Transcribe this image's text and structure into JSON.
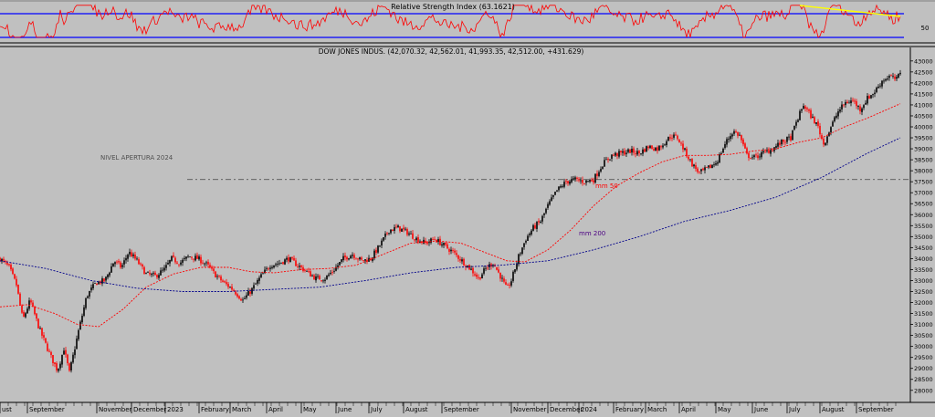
{
  "rsi_panel": {
    "title": "Relative Strength Index (63.1621)",
    "axis_label": "50"
  },
  "main_panel": {
    "title": "DOW JONES INDUS. (42,070.32, 42,562.01, 41,993.35, 42,512.00, +431.629)",
    "annotations": [
      {
        "text": "NIVEL APERTURA 2024"
      },
      {
        "text": "mm 50"
      },
      {
        "text": "mm 200"
      }
    ]
  },
  "colors": {
    "background": "#c0c0c0",
    "candle_up": "#000000",
    "candle_down": "#ff0000",
    "ma50": "#ff0000",
    "ma200": "#00008b",
    "rsi_line": "#ff0000",
    "rsi_level": "#0000ff",
    "trendline": "#ffff00",
    "reference_line": "#404040",
    "mm200_label": "#4b0082"
  },
  "chart_data": {
    "type": "candlestick",
    "title": "DOW JONES INDUS. (42,070.32, 42,562.01, 41,993.35, 42,512.00, +431.629)",
    "ylim": [
      27700,
      43200
    ],
    "y_axis_side": "right",
    "y_ticks": [
      28000,
      28500,
      29000,
      29500,
      30000,
      30500,
      31000,
      31500,
      32000,
      32500,
      33000,
      33500,
      34000,
      34500,
      35000,
      35500,
      36000,
      36500,
      37000,
      37500,
      38000,
      38500,
      39000,
      39500,
      40000,
      40500,
      41000,
      41500,
      42000,
      42500,
      43000
    ],
    "x_tick_labels": [
      "ust",
      "September",
      "November",
      "December",
      "2023",
      "February",
      "March",
      "April",
      "May",
      "June",
      "July",
      "August",
      "September",
      "November",
      "December",
      "2024",
      "February",
      "March",
      "April",
      "May",
      "June",
      "July",
      "August",
      "September"
    ],
    "grid": false,
    "price_path": [
      {
        "t": 0,
        "v": 34000
      },
      {
        "t": 10,
        "v": 33600
      },
      {
        "t": 18,
        "v": 32800
      },
      {
        "t": 25,
        "v": 31200
      },
      {
        "t": 33,
        "v": 32100
      },
      {
        "t": 43,
        "v": 30800
      },
      {
        "t": 55,
        "v": 29600
      },
      {
        "t": 63,
        "v": 28900
      },
      {
        "t": 70,
        "v": 29900
      },
      {
        "t": 76,
        "v": 28800
      },
      {
        "t": 86,
        "v": 30700
      },
      {
        "t": 95,
        "v": 32300
      },
      {
        "t": 105,
        "v": 32900
      },
      {
        "t": 115,
        "v": 33000
      },
      {
        "t": 125,
        "v": 33900
      },
      {
        "t": 133,
        "v": 33600
      },
      {
        "t": 141,
        "v": 34300
      },
      {
        "t": 150,
        "v": 33900
      },
      {
        "t": 160,
        "v": 33300
      },
      {
        "t": 170,
        "v": 33200
      },
      {
        "t": 180,
        "v": 33500
      },
      {
        "t": 188,
        "v": 34000
      },
      {
        "t": 197,
        "v": 33800
      },
      {
        "t": 207,
        "v": 34100
      },
      {
        "t": 217,
        "v": 34000
      },
      {
        "t": 227,
        "v": 33700
      },
      {
        "t": 235,
        "v": 33300
      },
      {
        "t": 245,
        "v": 32900
      },
      {
        "t": 255,
        "v": 32600
      },
      {
        "t": 266,
        "v": 32100
      },
      {
        "t": 276,
        "v": 32600
      },
      {
        "t": 286,
        "v": 33200
      },
      {
        "t": 296,
        "v": 33700
      },
      {
        "t": 306,
        "v": 33800
      },
      {
        "t": 316,
        "v": 34000
      },
      {
        "t": 326,
        "v": 33700
      },
      {
        "t": 336,
        "v": 33400
      },
      {
        "t": 346,
        "v": 33100
      },
      {
        "t": 356,
        "v": 33100
      },
      {
        "t": 366,
        "v": 33500
      },
      {
        "t": 376,
        "v": 34000
      },
      {
        "t": 386,
        "v": 34200
      },
      {
        "t": 396,
        "v": 33900
      },
      {
        "t": 406,
        "v": 34000
      },
      {
        "t": 416,
        "v": 34600
      },
      {
        "t": 426,
        "v": 35300
      },
      {
        "t": 436,
        "v": 35400
      },
      {
        "t": 446,
        "v": 35200
      },
      {
        "t": 456,
        "v": 34900
      },
      {
        "t": 466,
        "v": 34700
      },
      {
        "t": 476,
        "v": 34900
      },
      {
        "t": 486,
        "v": 34600
      },
      {
        "t": 496,
        "v": 34300
      },
      {
        "t": 506,
        "v": 33900
      },
      {
        "t": 516,
        "v": 33500
      },
      {
        "t": 524,
        "v": 33100
      },
      {
        "t": 533,
        "v": 33600
      },
      {
        "t": 540,
        "v": 33800
      },
      {
        "t": 548,
        "v": 33200
      },
      {
        "t": 555,
        "v": 32600
      },
      {
        "t": 560,
        "v": 33000
      },
      {
        "t": 568,
        "v": 34100
      },
      {
        "t": 576,
        "v": 34900
      },
      {
        "t": 584,
        "v": 35400
      },
      {
        "t": 592,
        "v": 35700
      },
      {
        "t": 600,
        "v": 36400
      },
      {
        "t": 610,
        "v": 37100
      },
      {
        "t": 620,
        "v": 37500
      },
      {
        "t": 630,
        "v": 37600
      },
      {
        "t": 640,
        "v": 37500
      },
      {
        "t": 650,
        "v": 37600
      },
      {
        "t": 660,
        "v": 38300
      },
      {
        "t": 670,
        "v": 38700
      },
      {
        "t": 680,
        "v": 38800
      },
      {
        "t": 690,
        "v": 38900
      },
      {
        "t": 700,
        "v": 38800
      },
      {
        "t": 710,
        "v": 39100
      },
      {
        "t": 720,
        "v": 39000
      },
      {
        "t": 728,
        "v": 39300
      },
      {
        "t": 735,
        "v": 39600
      },
      {
        "t": 742,
        "v": 39500
      },
      {
        "t": 750,
        "v": 38900
      },
      {
        "t": 758,
        "v": 38300
      },
      {
        "t": 766,
        "v": 37900
      },
      {
        "t": 775,
        "v": 38100
      },
      {
        "t": 785,
        "v": 38400
      },
      {
        "t": 795,
        "v": 39300
      },
      {
        "t": 803,
        "v": 39800
      },
      {
        "t": 810,
        "v": 39600
      },
      {
        "t": 818,
        "v": 38700
      },
      {
        "t": 826,
        "v": 38600
      },
      {
        "t": 836,
        "v": 38800
      },
      {
        "t": 846,
        "v": 39000
      },
      {
        "t": 856,
        "v": 39300
      },
      {
        "t": 866,
        "v": 39500
      },
      {
        "t": 873,
        "v": 40300
      },
      {
        "t": 880,
        "v": 41000
      },
      {
        "t": 888,
        "v": 40500
      },
      {
        "t": 896,
        "v": 40000
      },
      {
        "t": 902,
        "v": 39200
      },
      {
        "t": 910,
        "v": 40000
      },
      {
        "t": 918,
        "v": 40700
      },
      {
        "t": 926,
        "v": 41100
      },
      {
        "t": 934,
        "v": 41200
      },
      {
        "t": 942,
        "v": 40800
      },
      {
        "t": 950,
        "v": 41300
      },
      {
        "t": 958,
        "v": 41600
      },
      {
        "t": 966,
        "v": 42100
      },
      {
        "t": 974,
        "v": 42300
      },
      {
        "t": 982,
        "v": 42150
      },
      {
        "t": 986,
        "v": 42512
      }
    ],
    "series": [
      {
        "name": "mm 50",
        "style": "dotted",
        "points": [
          {
            "t": 0,
            "v": 31800
          },
          {
            "t": 30,
            "v": 31900
          },
          {
            "t": 60,
            "v": 31500
          },
          {
            "t": 85,
            "v": 31000
          },
          {
            "t": 108,
            "v": 30900
          },
          {
            "t": 135,
            "v": 31700
          },
          {
            "t": 160,
            "v": 32700
          },
          {
            "t": 190,
            "v": 33300
          },
          {
            "t": 220,
            "v": 33600
          },
          {
            "t": 250,
            "v": 33600
          },
          {
            "t": 275,
            "v": 33400
          },
          {
            "t": 300,
            "v": 33350
          },
          {
            "t": 330,
            "v": 33500
          },
          {
            "t": 360,
            "v": 33550
          },
          {
            "t": 390,
            "v": 33700
          },
          {
            "t": 420,
            "v": 34200
          },
          {
            "t": 450,
            "v": 34700
          },
          {
            "t": 480,
            "v": 34800
          },
          {
            "t": 505,
            "v": 34700
          },
          {
            "t": 530,
            "v": 34300
          },
          {
            "t": 555,
            "v": 33900
          },
          {
            "t": 575,
            "v": 33850
          },
          {
            "t": 600,
            "v": 34400
          },
          {
            "t": 625,
            "v": 35300
          },
          {
            "t": 650,
            "v": 36400
          },
          {
            "t": 675,
            "v": 37300
          },
          {
            "t": 700,
            "v": 37900
          },
          {
            "t": 725,
            "v": 38400
          },
          {
            "t": 750,
            "v": 38700
          },
          {
            "t": 775,
            "v": 38700
          },
          {
            "t": 800,
            "v": 38750
          },
          {
            "t": 825,
            "v": 38900
          },
          {
            "t": 850,
            "v": 39000
          },
          {
            "t": 875,
            "v": 39300
          },
          {
            "t": 900,
            "v": 39500
          },
          {
            "t": 925,
            "v": 40000
          },
          {
            "t": 950,
            "v": 40400
          },
          {
            "t": 986,
            "v": 41050
          }
        ]
      },
      {
        "name": "mm 200",
        "style": "dotted",
        "points": [
          {
            "t": 0,
            "v": 33900
          },
          {
            "t": 50,
            "v": 33550
          },
          {
            "t": 100,
            "v": 33000
          },
          {
            "t": 150,
            "v": 32650
          },
          {
            "t": 200,
            "v": 32500
          },
          {
            "t": 250,
            "v": 32500
          },
          {
            "t": 300,
            "v": 32600
          },
          {
            "t": 350,
            "v": 32700
          },
          {
            "t": 400,
            "v": 33000
          },
          {
            "t": 450,
            "v": 33350
          },
          {
            "t": 500,
            "v": 33600
          },
          {
            "t": 550,
            "v": 33700
          },
          {
            "t": 600,
            "v": 33900
          },
          {
            "t": 650,
            "v": 34400
          },
          {
            "t": 700,
            "v": 35000
          },
          {
            "t": 750,
            "v": 35700
          },
          {
            "t": 800,
            "v": 36200
          },
          {
            "t": 850,
            "v": 36800
          },
          {
            "t": 900,
            "v": 37700
          },
          {
            "t": 950,
            "v": 38800
          },
          {
            "t": 986,
            "v": 39500
          }
        ]
      }
    ],
    "reference_line": {
      "label": "NIVEL APERTURA 2024",
      "value": 37600
    },
    "rsi": {
      "title": "Relative Strength Index (63.1621)",
      "value": 63.1621,
      "levels": [
        70,
        30
      ],
      "axis_tick": 50
    }
  }
}
